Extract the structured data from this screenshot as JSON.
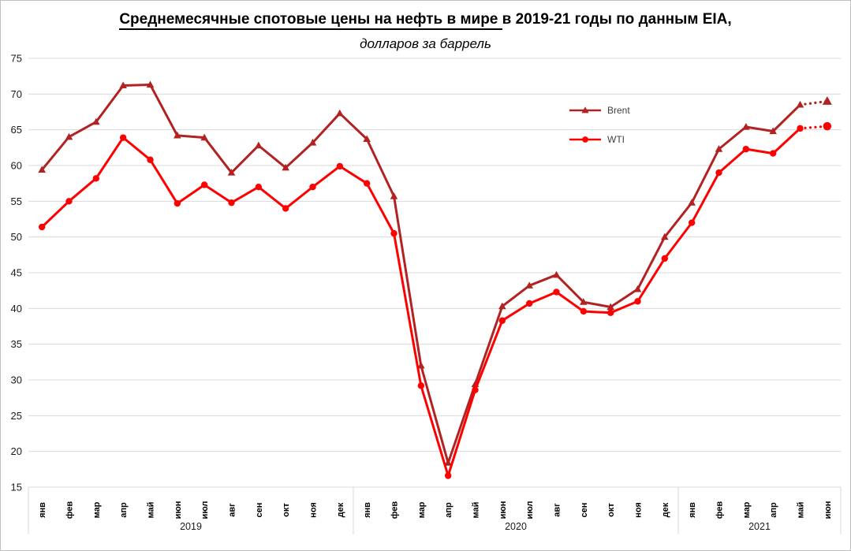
{
  "title": {
    "underlined_part": "Среднемесячные спотовые цены на нефть в мире ",
    "normal_part": "в 2019-21 годы по данным EIA,",
    "subtitle": "долларов за баррель"
  },
  "colors": {
    "background": "#FFFFFF",
    "border": "#BFBFBF",
    "gridline": "#D9D9D9",
    "axis_text": "#1A1A1A",
    "month_text": "#000000",
    "year_text": "#1A1A1A",
    "legend_text": "#3F3F3F",
    "brent": "#B22222",
    "wti": "#FF0000"
  },
  "chart_data": {
    "type": "line",
    "title": "Среднемесячные спотовые цены на нефть в мире в 2019-21 годы по данным EIA,",
    "subtitle": "долларов за баррель",
    "ylabel": "долларов за баррель",
    "ylim": [
      15,
      75
    ],
    "yticks": [
      15,
      20,
      25,
      30,
      35,
      40,
      45,
      50,
      55,
      60,
      65,
      70,
      75
    ],
    "grid": "horizontal",
    "legend_position": "inside-upper-right",
    "year_groups": [
      {
        "label": "2019",
        "months": [
          "янв",
          "фев",
          "мар",
          "апр",
          "май",
          "июн",
          "июл",
          "авг",
          "сен",
          "окт",
          "ноя",
          "дек"
        ]
      },
      {
        "label": "2020",
        "months": [
          "янв",
          "фев",
          "мар",
          "апр",
          "май",
          "июн",
          "июл",
          "авг",
          "сен",
          "окт",
          "ноя",
          "дек"
        ]
      },
      {
        "label": "2021",
        "months": [
          "янв",
          "фев",
          "мар",
          "апр",
          "май",
          "июн"
        ]
      }
    ],
    "series": [
      {
        "name": "Brent",
        "color": "#B22222",
        "marker": "triangle",
        "last_segment_dotted": true,
        "values": [
          59.4,
          64.0,
          66.1,
          71.2,
          71.3,
          64.2,
          63.9,
          59.0,
          62.8,
          59.7,
          63.2,
          67.3,
          63.7,
          55.7,
          32.0,
          18.4,
          29.4,
          40.3,
          43.2,
          44.7,
          40.9,
          40.2,
          42.7,
          50.0,
          54.8,
          62.3,
          65.4,
          64.8,
          68.5,
          69.0
        ]
      },
      {
        "name": "WTI",
        "color": "#FF0000",
        "marker": "circle",
        "last_segment_dotted": true,
        "values": [
          51.4,
          55.0,
          58.2,
          63.9,
          60.8,
          54.7,
          57.3,
          54.8,
          57.0,
          54.0,
          57.0,
          59.9,
          57.5,
          50.5,
          29.2,
          16.6,
          28.6,
          38.3,
          40.7,
          42.3,
          39.6,
          39.4,
          41.0,
          47.0,
          52.0,
          59.0,
          62.3,
          61.7,
          65.2,
          65.5
        ]
      }
    ]
  }
}
